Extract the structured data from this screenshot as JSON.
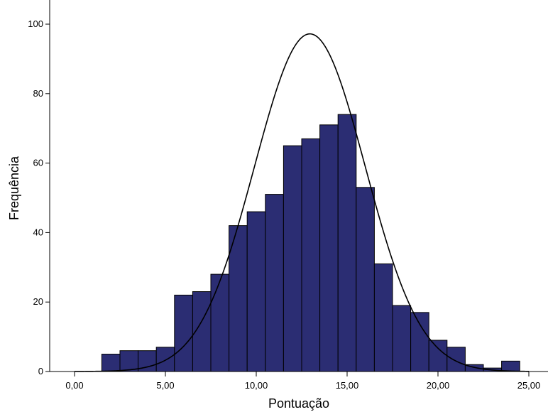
{
  "chart_data": {
    "type": "bar",
    "subtype": "histogram",
    "xlabel": "Pontuação",
    "ylabel": "Frequência",
    "xlim": [
      -1.25,
      25.75
    ],
    "ylim": [
      0,
      104
    ],
    "x_ticks": [
      0,
      5,
      10,
      15,
      20,
      25
    ],
    "x_tick_labels": [
      "0,00",
      "5,00",
      "10,00",
      "15,00",
      "20,00",
      "25,00"
    ],
    "y_ticks": [
      0,
      20,
      40,
      60,
      80,
      100
    ],
    "y_tick_labels": [
      "0",
      "20",
      "40",
      "60",
      "80",
      "100"
    ],
    "bin_width": 1,
    "bin_starts": [
      1.5,
      2.5,
      3.5,
      4.5,
      5.5,
      6.5,
      7.5,
      8.5,
      9.5,
      10.5,
      11.5,
      12.5,
      13.5,
      14.5,
      15.5,
      16.5,
      17.5,
      18.5,
      19.5,
      20.5,
      21.5,
      22.5,
      23.5
    ],
    "values": [
      5,
      6,
      6,
      7,
      22,
      23,
      28,
      42,
      46,
      51,
      65,
      67,
      71,
      74,
      53,
      31,
      19,
      17,
      9,
      7,
      2,
      1,
      3
    ],
    "normal_curve": {
      "mean": 12.95,
      "sd": 3.05,
      "peak": 97.2
    },
    "bar_color": "#2b2d73",
    "bar_edge_color": "#000000",
    "grid": false,
    "legend": "none"
  }
}
